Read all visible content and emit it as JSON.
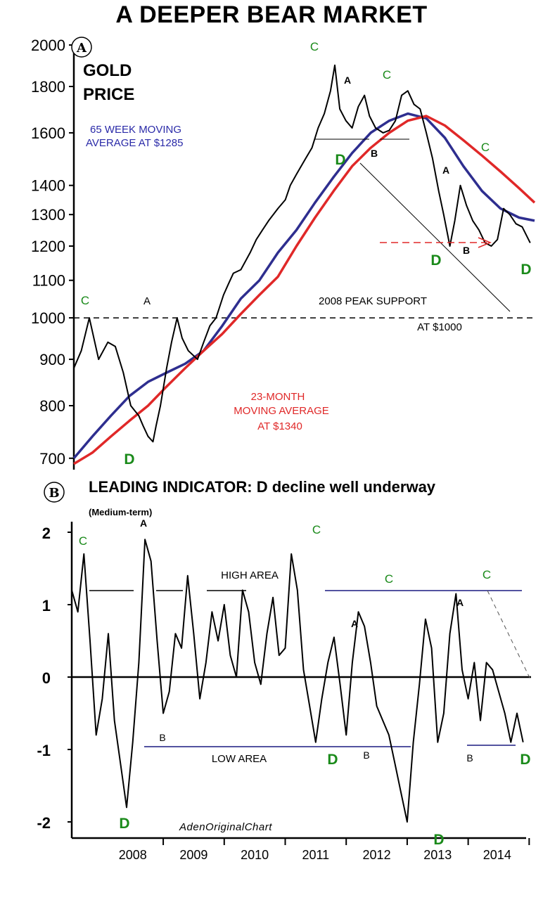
{
  "title": "A DEEPER BEAR MARKET",
  "watermark": "AdenOriginalChart",
  "colors": {
    "price": "#000000",
    "ma_blue": "#2e2e8f",
    "ma_red": "#e02828",
    "green": "#1a8a1a",
    "blue_text": "#2a2aa8",
    "red_text": "#e02828",
    "navy_line": "#1a1a80"
  },
  "chart_data": [
    {
      "type": "line",
      "panel": "A",
      "scale": "log",
      "ylim": [
        680,
        2000
      ],
      "yticks": [
        2000,
        1800,
        1600,
        1400,
        1300,
        1200,
        1100,
        1000,
        900,
        800,
        700
      ],
      "xlim": [
        2007.5,
        2014.95
      ],
      "series": [
        {
          "name": "Gold price",
          "color": "#000000",
          "x": [
            2007.5,
            2007.62,
            2007.75,
            2007.9,
            2008.05,
            2008.17,
            2008.3,
            2008.42,
            2008.55,
            2008.62,
            2008.7,
            2008.78,
            2008.83,
            2008.9,
            2009.0,
            2009.08,
            2009.17,
            2009.25,
            2009.35,
            2009.5,
            2009.6,
            2009.7,
            2009.8,
            2009.92,
            2010.0,
            2010.08,
            2010.2,
            2010.35,
            2010.45,
            2010.55,
            2010.65,
            2010.8,
            2010.92,
            2011.0,
            2011.1,
            2011.25,
            2011.35,
            2011.45,
            2011.55,
            2011.65,
            2011.72,
            2011.8,
            2011.9,
            2012.0,
            2012.1,
            2012.2,
            2012.28,
            2012.38,
            2012.5,
            2012.6,
            2012.7,
            2012.8,
            2012.9,
            2013.0,
            2013.1,
            2013.2,
            2013.3,
            2013.4,
            2013.48,
            2013.58,
            2013.66,
            2013.75,
            2013.85,
            2013.95,
            2014.05,
            2014.15,
            2014.25,
            2014.35,
            2014.45,
            2014.55,
            2014.65,
            2014.75,
            2014.88
          ],
          "y": [
            880,
            920,
            1000,
            900,
            940,
            930,
            870,
            800,
            780,
            760,
            740,
            730,
            760,
            800,
            880,
            940,
            1000,
            950,
            920,
            900,
            940,
            980,
            1000,
            1060,
            1090,
            1120,
            1130,
            1180,
            1220,
            1250,
            1280,
            1320,
            1350,
            1400,
            1440,
            1500,
            1540,
            1620,
            1680,
            1780,
            1900,
            1700,
            1650,
            1620,
            1710,
            1760,
            1670,
            1620,
            1600,
            1610,
            1650,
            1760,
            1780,
            1720,
            1700,
            1600,
            1500,
            1380,
            1300,
            1200,
            1280,
            1400,
            1330,
            1280,
            1250,
            1210,
            1200,
            1220,
            1320,
            1300,
            1270,
            1260,
            1210
          ]
        },
        {
          "name": "65 week moving average",
          "color": "#2e2e8f",
          "x": [
            2007.5,
            2007.8,
            2008.1,
            2008.4,
            2008.7,
            2009.0,
            2009.3,
            2009.6,
            2009.9,
            2010.2,
            2010.5,
            2010.8,
            2011.1,
            2011.4,
            2011.7,
            2012.0,
            2012.3,
            2012.6,
            2012.9,
            2013.2,
            2013.5,
            2013.8,
            2014.1,
            2014.4,
            2014.7,
            2014.95
          ],
          "y": [
            700,
            740,
            780,
            820,
            850,
            870,
            890,
            920,
            980,
            1050,
            1100,
            1180,
            1250,
            1340,
            1430,
            1520,
            1600,
            1650,
            1680,
            1660,
            1580,
            1470,
            1380,
            1320,
            1290,
            1280
          ]
        },
        {
          "name": "23 month moving average",
          "color": "#e02828",
          "x": [
            2007.5,
            2007.8,
            2008.1,
            2008.4,
            2008.7,
            2009.0,
            2009.3,
            2009.6,
            2009.9,
            2010.2,
            2010.5,
            2010.8,
            2011.1,
            2011.4,
            2011.7,
            2012.0,
            2012.3,
            2012.6,
            2012.9,
            2013.2,
            2013.5,
            2013.8,
            2014.1,
            2014.4,
            2014.7,
            2014.95
          ],
          "y": [
            690,
            710,
            740,
            770,
            800,
            840,
            880,
            920,
            960,
            1010,
            1060,
            1110,
            1200,
            1290,
            1380,
            1470,
            1540,
            1600,
            1650,
            1670,
            1630,
            1570,
            1510,
            1450,
            1390,
            1340
          ]
        }
      ]
    },
    {
      "type": "line",
      "panel": "B",
      "ylim": [
        -2.2,
        2.2
      ],
      "yticks": [
        2,
        1,
        0,
        -1,
        -2
      ],
      "xlim": [
        2007.5,
        2014.95
      ],
      "xticks": [
        "2008",
        "2009",
        "2010",
        "2011",
        "2012",
        "2013",
        "2014"
      ],
      "series": [
        {
          "name": "Leading indicator",
          "color": "#000000",
          "x": [
            2007.5,
            2007.6,
            2007.7,
            2007.8,
            2007.9,
            2008.0,
            2008.1,
            2008.2,
            2008.3,
            2008.4,
            2008.5,
            2008.6,
            2008.7,
            2008.8,
            2008.9,
            2009.0,
            2009.1,
            2009.2,
            2009.3,
            2009.4,
            2009.5,
            2009.6,
            2009.7,
            2009.8,
            2009.9,
            2010.0,
            2010.1,
            2010.2,
            2010.3,
            2010.4,
            2010.5,
            2010.6,
            2010.7,
            2010.8,
            2010.9,
            2011.0,
            2011.1,
            2011.2,
            2011.3,
            2011.4,
            2011.5,
            2011.6,
            2011.7,
            2011.8,
            2011.9,
            2012.0,
            2012.1,
            2012.2,
            2012.3,
            2012.4,
            2012.5,
            2012.6,
            2012.7,
            2012.8,
            2012.9,
            2013.0,
            2013.1,
            2013.2,
            2013.3,
            2013.4,
            2013.5,
            2013.6,
            2013.7,
            2013.8,
            2013.9,
            2014.0,
            2014.1,
            2014.2,
            2014.3,
            2014.4,
            2014.5,
            2014.6,
            2014.7,
            2014.8,
            2014.9
          ],
          "y": [
            1.2,
            0.9,
            1.7,
            0.5,
            -0.8,
            -0.3,
            0.6,
            -0.6,
            -1.2,
            -1.8,
            -0.9,
            0.2,
            1.9,
            1.6,
            0.5,
            -0.5,
            -0.2,
            0.6,
            0.4,
            1.4,
            0.6,
            -0.3,
            0.2,
            0.9,
            0.5,
            1.0,
            0.3,
            0.0,
            1.2,
            0.9,
            0.2,
            -0.1,
            0.6,
            1.1,
            0.3,
            0.4,
            1.7,
            1.2,
            0.1,
            -0.4,
            -0.9,
            -0.3,
            0.2,
            0.55,
            -0.1,
            -0.8,
            0.2,
            0.9,
            0.7,
            0.2,
            -0.4,
            -0.6,
            -0.8,
            -1.2,
            -1.6,
            -2.0,
            -0.9,
            -0.1,
            0.8,
            0.4,
            -0.9,
            -0.5,
            0.6,
            1.15,
            0.1,
            -0.3,
            0.2,
            -0.6,
            0.2,
            0.1,
            -0.2,
            -0.5,
            -0.9,
            -0.5,
            -0.9
          ]
        }
      ]
    }
  ],
  "panel_a": {
    "badge": "A",
    "title_line1": "GOLD",
    "title_line2": "PRICE",
    "blue_label_line1": "65 WEEK MOVING",
    "blue_label_line2": "AVERAGE AT $1285",
    "red_label_line1": "23-MONTH",
    "red_label_line2": "MOVING AVERAGE",
    "red_label_line3": "AT $1340",
    "support_line1": "2008 PEAK SUPPORT",
    "support_line2": "AT $1000",
    "support_level": 1000,
    "markers": {
      "c1": "C",
      "a1": "A",
      "d1": "D",
      "c2": "C",
      "a2": "A",
      "c3": "C",
      "d2": "D",
      "b1": "B",
      "c4": "C",
      "a3": "A",
      "d3": "D",
      "b2": "B",
      "d4": "D"
    }
  },
  "panel_b": {
    "badge": "B",
    "title": "LEADING INDICATOR: D decline well underway",
    "subtitle": "(Medium-term)",
    "high_area": "HIGH AREA",
    "low_area": "LOW  AREA",
    "markers": {
      "c1": "C",
      "a1": "A",
      "b1": "B",
      "d1": "D",
      "c2": "C",
      "a2": "A",
      "c3": "C",
      "d2": "D",
      "b2": "B",
      "d3": "D",
      "a3": "A",
      "c4": "C",
      "b3": "B",
      "d4": "D"
    }
  }
}
